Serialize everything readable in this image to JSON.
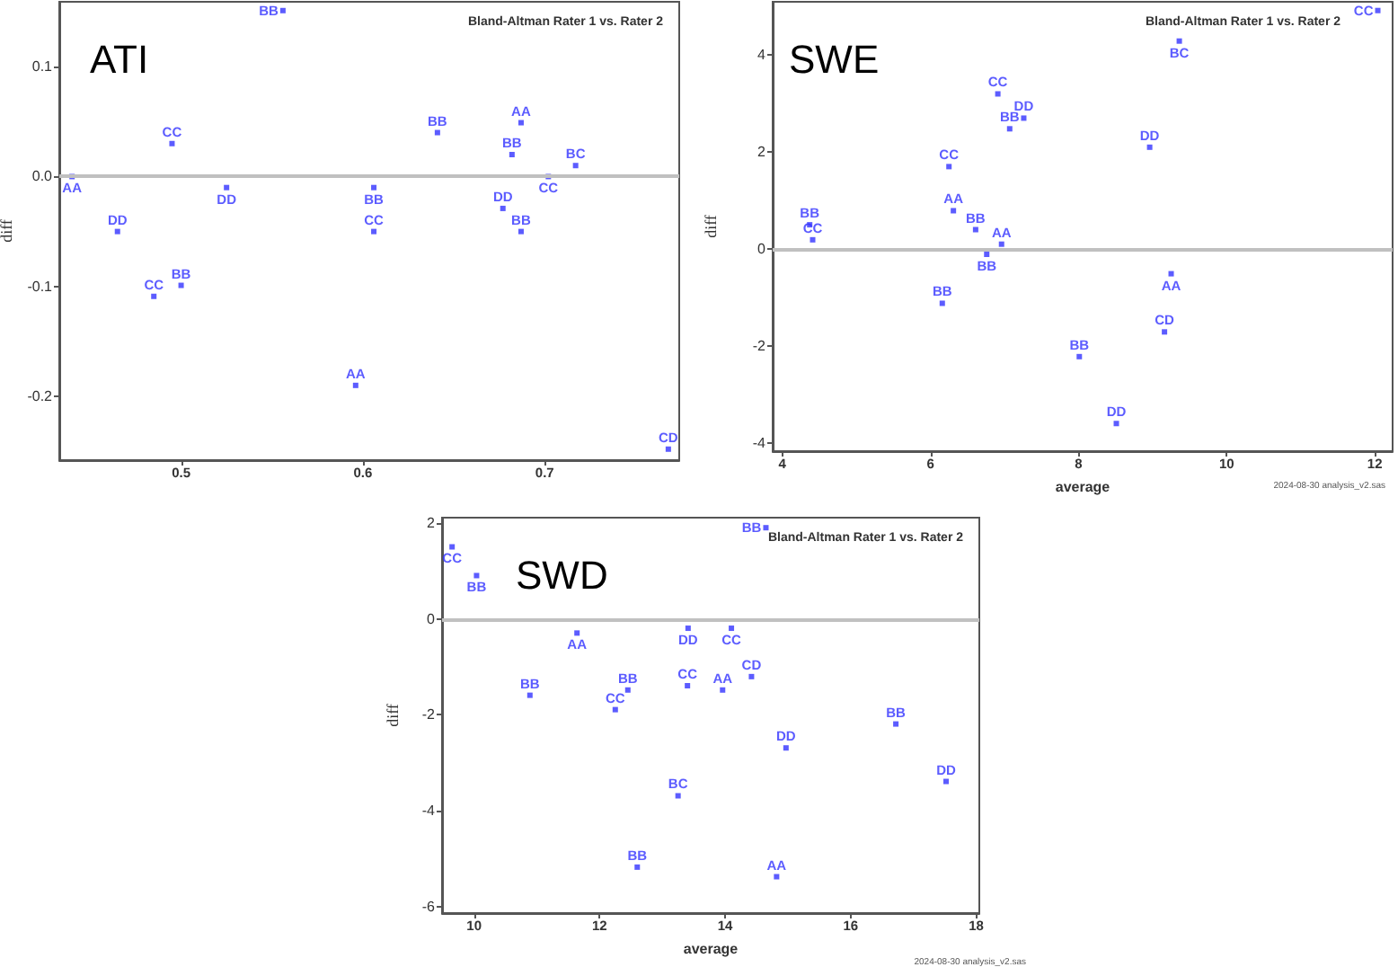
{
  "chart_data": [
    {
      "type": "scatter",
      "title": "ATI",
      "subtitle": "Bland-Altman Rater 1 vs. Rater 2",
      "ylabel": "diff",
      "marker": "square",
      "grid": false,
      "legend": false,
      "xlim": [
        0.433,
        0.774
      ],
      "xticks": [
        0.5,
        0.6,
        0.7
      ],
      "ylim": [
        -0.258,
        0.159
      ],
      "yticks": [
        {
          "value": -0.2,
          "label": "-0.2"
        },
        {
          "value": -0.1,
          "label": "-0.1"
        },
        {
          "value": 0,
          "label": "0.0"
        },
        {
          "value": 0.1,
          "label": "0.1"
        }
      ],
      "ref_lines": [
        {
          "axis": "y",
          "value": 0,
          "color": "#c0c0c0"
        }
      ],
      "series": [
        {
          "name": "AA",
          "color": "#3333ff",
          "x": [
            0.44,
            0.596,
            0.687
          ],
          "values": [
            0,
            -0.19,
            0.049
          ]
        },
        {
          "name": "BB",
          "color": "#3333ff",
          "x": [
            0.556,
            0.5,
            0.606,
            0.641,
            0.682,
            0.687
          ],
          "values": [
            0.151,
            -0.099,
            -0.01,
            0.04,
            0.02,
            -0.05
          ]
        },
        {
          "name": "BC",
          "color": "#3333ff",
          "x": [
            0.717
          ],
          "values": [
            0.01
          ]
        },
        {
          "name": "CC",
          "color": "#3333ff",
          "x": [
            0.495,
            0.485,
            0.606,
            0.702
          ],
          "values": [
            0.03,
            -0.109,
            -0.05,
            0
          ]
        },
        {
          "name": "CD",
          "color": "#3333ff",
          "x": [
            0.768
          ],
          "values": [
            -0.248
          ]
        },
        {
          "name": "DD",
          "color": "#3333ff",
          "x": [
            0.525,
            0.465,
            0.677
          ],
          "values": [
            -0.01,
            -0.05,
            -0.029
          ]
        }
      ]
    },
    {
      "type": "scatter",
      "title": "SWE",
      "subtitle": "Bland-Altman Rater 1 vs. Rater 2",
      "xlabel": "average",
      "ylabel": "diff",
      "marker": "square",
      "grid": false,
      "legend": false,
      "xlim": [
        3.87,
        12.24
      ],
      "xticks": [
        4,
        6,
        8,
        10,
        12
      ],
      "ylim": [
        -4.17,
        5.1
      ],
      "yticks": [
        -4,
        -2,
        0,
        2,
        4
      ],
      "ref_lines": [
        {
          "axis": "y",
          "value": 0,
          "color": "#c0c0c0"
        }
      ],
      "annotations": [
        "2024-08-30 analysis_v2.sas"
      ],
      "series": [
        {
          "name": "AA",
          "color": "#3333ff",
          "x": [
            6.31,
            6.96,
            9.25
          ],
          "values": [
            0.79,
            0.1,
            -0.51
          ]
        },
        {
          "name": "BB",
          "color": "#3333ff",
          "x": [
            7.07,
            4.37,
            6.61,
            6.76,
            6.16,
            8.01
          ],
          "values": [
            2.48,
            0.5,
            0.4,
            -0.11,
            -1.12,
            -2.22
          ]
        },
        {
          "name": "BC",
          "color": "#3333ff",
          "x": [
            9.36
          ],
          "values": [
            4.29
          ]
        },
        {
          "name": "CC",
          "color": "#3333ff",
          "x": [
            12.04,
            6.91,
            6.25,
            4.41
          ],
          "values": [
            4.92,
            3.2,
            1.7,
            0.19
          ]
        },
        {
          "name": "CD",
          "color": "#3333ff",
          "x": [
            9.16
          ],
          "values": [
            -1.71
          ]
        },
        {
          "name": "DD",
          "color": "#3333ff",
          "x": [
            7.26,
            8.96,
            8.51
          ],
          "values": [
            2.7,
            2.1,
            -3.6
          ]
        }
      ]
    },
    {
      "type": "scatter",
      "title": "SWD",
      "subtitle": "Bland-Altman Rater 1 vs. Rater 2",
      "xlabel": "average",
      "ylabel": "diff",
      "marker": "square",
      "grid": false,
      "legend": false,
      "xlim": [
        9.49,
        18.05
      ],
      "xticks": [
        10,
        12,
        14,
        16,
        18
      ],
      "ylim": [
        -6.14,
        2.12
      ],
      "yticks": [
        -6,
        -4,
        -2,
        0,
        2
      ],
      "ref_lines": [
        {
          "axis": "y",
          "value": 0,
          "color": "#c0c0c0"
        }
      ],
      "annotations": [
        "2024-08-30 analysis_v2.sas"
      ],
      "series": [
        {
          "name": "AA",
          "color": "#3333ff",
          "x": [
            11.64,
            13.96,
            14.82
          ],
          "values": [
            -0.29,
            -1.48,
            -5.38
          ]
        },
        {
          "name": "BB",
          "color": "#3333ff",
          "x": [
            10.04,
            14.65,
            10.89,
            12.45,
            16.72,
            12.6
          ],
          "values": [
            0.91,
            1.91,
            -1.59,
            -1.48,
            -2.19,
            -5.18
          ]
        },
        {
          "name": "BC",
          "color": "#3333ff",
          "x": [
            13.25
          ],
          "values": [
            -3.69
          ]
        },
        {
          "name": "CC",
          "color": "#3333ff",
          "x": [
            9.65,
            14.1,
            13.4,
            12.25
          ],
          "values": [
            1.51,
            -0.19,
            -1.39,
            -1.89
          ]
        },
        {
          "name": "CD",
          "color": "#3333ff",
          "x": [
            14.42
          ],
          "values": [
            -1.2
          ]
        },
        {
          "name": "DD",
          "color": "#3333ff",
          "x": [
            13.41,
            14.97,
            17.52
          ],
          "values": [
            -0.19,
            -2.69,
            -3.39
          ]
        }
      ]
    }
  ]
}
